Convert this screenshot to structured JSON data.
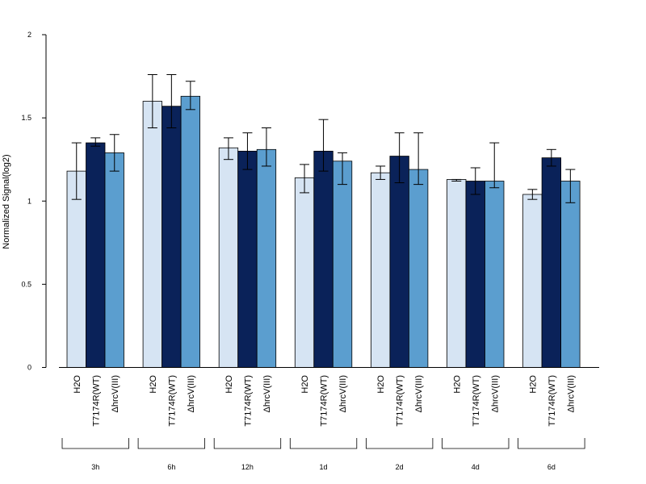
{
  "chart_data": {
    "type": "bar",
    "title": "",
    "xlabel": "",
    "ylabel": "Normalized Signal(log2)",
    "ylim": [
      0,
      2
    ],
    "yticks": [
      0,
      0.5,
      1,
      1.5,
      2
    ],
    "ytick_labels": [
      "0",
      "0.5",
      "1",
      "1.5",
      "2"
    ],
    "grid": false,
    "legend": "none",
    "groups": [
      "3h",
      "6h",
      "12h",
      "1d",
      "2d",
      "4d",
      "6d"
    ],
    "bar_labels": [
      "H2O",
      "T7174R(WT)",
      "ΔhrcV(III)"
    ],
    "series": [
      {
        "color": "#D6E4F3",
        "values": [
          1.18,
          1.6,
          1.32,
          1.14,
          1.17,
          1.13,
          1.04
        ],
        "err_low": [
          1.01,
          1.44,
          1.25,
          1.05,
          1.13,
          1.12,
          1.01
        ],
        "err_high": [
          1.35,
          1.76,
          1.38,
          1.22,
          1.21,
          1.13,
          1.07
        ]
      },
      {
        "color": "#0A2259",
        "values": [
          1.35,
          1.57,
          1.3,
          1.3,
          1.27,
          1.12,
          1.26
        ],
        "err_low": [
          1.33,
          1.44,
          1.19,
          1.18,
          1.11,
          1.04,
          1.21
        ],
        "err_high": [
          1.38,
          1.76,
          1.41,
          1.49,
          1.41,
          1.2,
          1.31
        ]
      },
      {
        "color": "#5B9ECF",
        "values": [
          1.29,
          1.63,
          1.31,
          1.24,
          1.19,
          1.12,
          1.12
        ],
        "err_low": [
          1.18,
          1.55,
          1.21,
          1.1,
          1.1,
          1.08,
          0.99
        ],
        "err_high": [
          1.4,
          1.72,
          1.44,
          1.29,
          1.41,
          1.35,
          1.19
        ]
      }
    ]
  }
}
